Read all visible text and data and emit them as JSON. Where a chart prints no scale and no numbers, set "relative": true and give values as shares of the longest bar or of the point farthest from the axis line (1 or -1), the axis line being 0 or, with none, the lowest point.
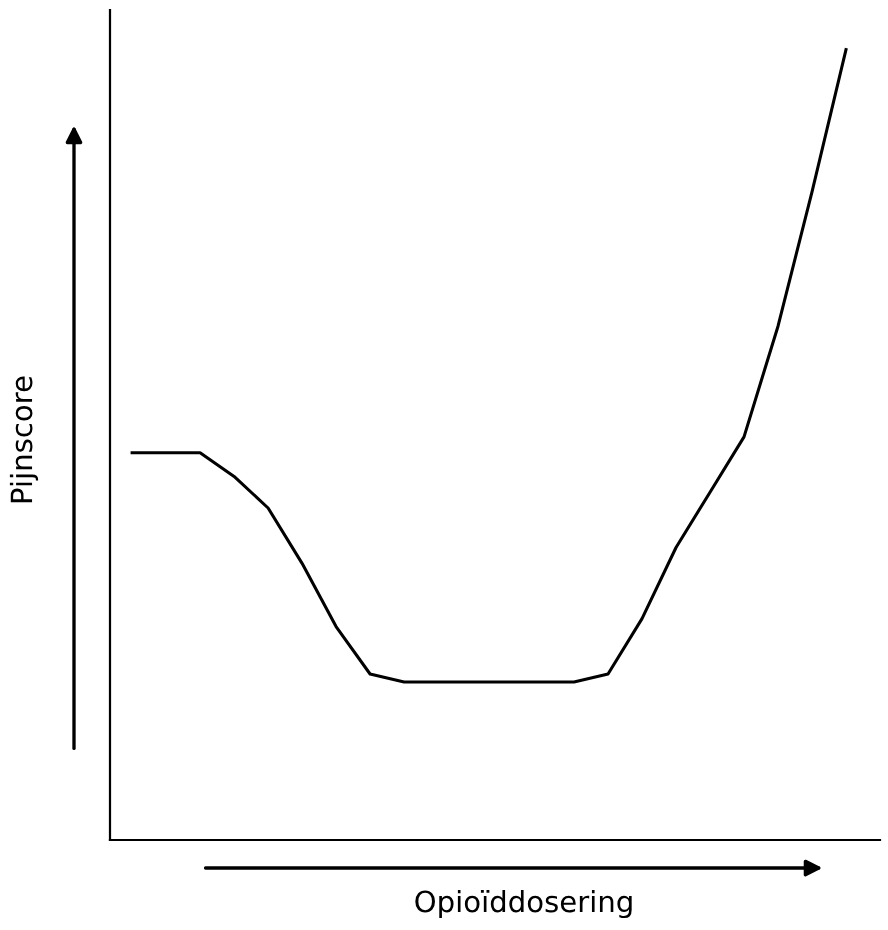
{
  "chart_data": {
    "type": "line",
    "relative": true,
    "xlabel": "Opioïddosering",
    "ylabel": "Pijnscore",
    "categories": [
      null,
      null,
      null,
      null,
      null,
      null,
      null,
      null,
      null,
      null,
      null,
      null,
      null,
      null,
      null,
      null,
      null,
      null,
      null,
      null,
      null,
      null
    ],
    "series": [
      {
        "color": "#000000",
        "values": [
          0.49,
          0.49,
          0.49,
          0.46,
          0.42,
          0.35,
          0.27,
          0.21,
          0.2,
          0.2,
          0.2,
          0.2,
          0.2,
          0.2,
          0.21,
          0.28,
          0.37,
          0.44,
          0.51,
          0.65,
          0.82,
          1
        ]
      }
    ],
    "grid": false,
    "legend": false,
    "marker": "none",
    "line_style": "solid"
  }
}
